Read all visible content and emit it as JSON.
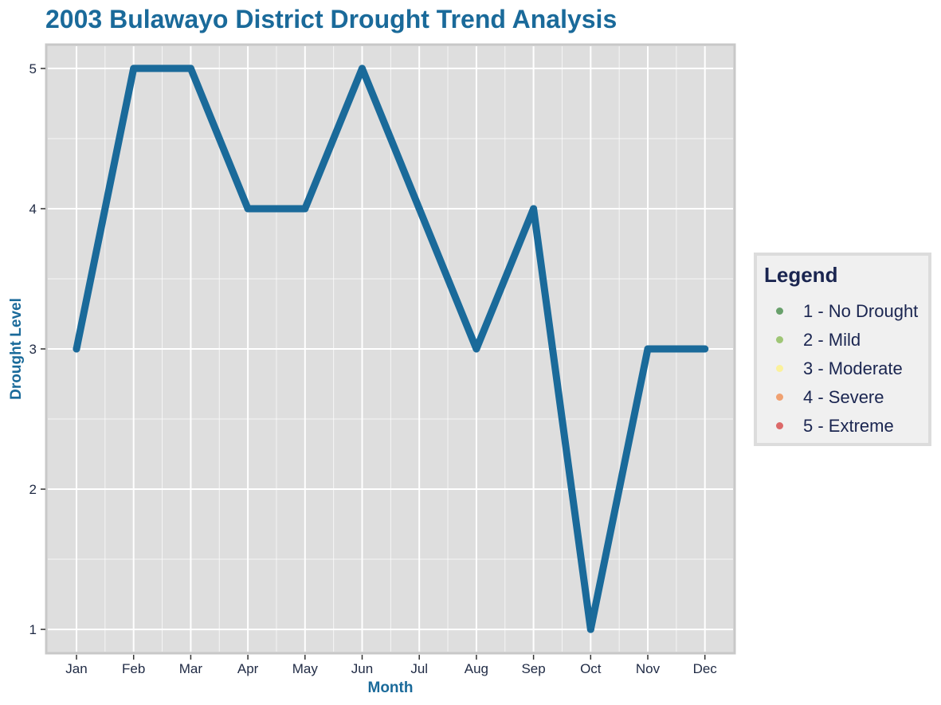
{
  "colors": {
    "title": "#1a6a9a",
    "line": "#1a6a9a",
    "panel_bg": "#dedede",
    "panel_border": "#c8c8c8",
    "grid": "#ffffff",
    "tick_text": "#1f2a44",
    "legend_text": "#1a2550"
  },
  "chart_data": {
    "type": "line",
    "title": "2003 Bulawayo District Drought Trend Analysis",
    "xlabel": "Month",
    "ylabel": "Drought Level",
    "categories": [
      "Jan",
      "Feb",
      "Mar",
      "Apr",
      "May",
      "Jun",
      "Jul",
      "Aug",
      "Sep",
      "Oct",
      "Nov",
      "Dec"
    ],
    "values": [
      3,
      5,
      5,
      4,
      4,
      5,
      4,
      3,
      4,
      1,
      3,
      3
    ],
    "ylim": [
      0.83,
      5.17
    ],
    "yticks": [
      1,
      2,
      3,
      4,
      5
    ],
    "grid": true,
    "legend": {
      "title": "Legend",
      "placement": "right",
      "items": [
        {
          "label": "1 - No Drought",
          "color": "#2e7d32"
        },
        {
          "label": "2 - Mild",
          "color": "#7cb342"
        },
        {
          "label": "3 - Moderate",
          "color": "#fff176"
        },
        {
          "label": "4 - Severe",
          "color": "#ef7f3a"
        },
        {
          "label": "5 - Extreme",
          "color": "#d32f2f"
        }
      ]
    }
  }
}
